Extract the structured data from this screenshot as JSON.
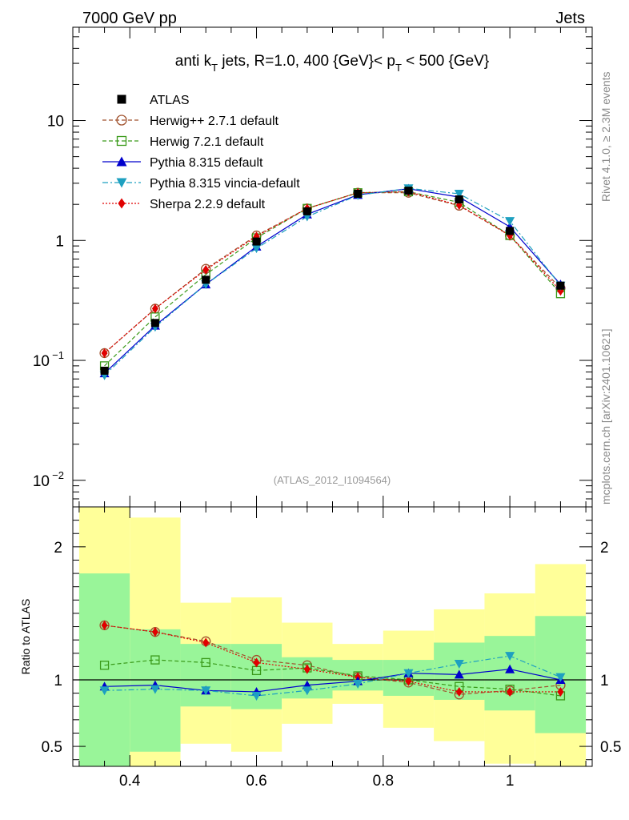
{
  "header": {
    "left": "7000 GeV pp",
    "right": "Jets"
  },
  "side_labels": {
    "top": "Rivet 4.1.0, ≥ 2.3M events",
    "bottom": "mcplots.cern.ch [arXiv:2401.10621]"
  },
  "chart_data": {
    "type": "line",
    "title": "anti k_T jets, R=1.0,  400 {GeV}< p_T < 500 {GeV}",
    "title_parts": {
      "a": "anti k",
      "a_sub": "T",
      "b": " jets, R=1.0,  400 {GeV}< p",
      "b_sub": "T",
      "c": " < 500 {GeV}"
    },
    "watermark": "(ATLAS_2012_I1094564)",
    "x": [
      0.36,
      0.44,
      0.52,
      0.6,
      0.68,
      0.76,
      0.84,
      0.92,
      1.0,
      1.08
    ],
    "xlim": [
      0.31,
      1.13
    ],
    "xticks": [
      0.4,
      0.6,
      0.8,
      1.0
    ],
    "xtick_labels": [
      "0.4",
      "0.6",
      "0.8",
      "1"
    ],
    "main": {
      "yscale": "log",
      "ylim": [
        0.006,
        60
      ],
      "yticks": [
        {
          "value": 0.01,
          "base": "10",
          "exp": "−2"
        },
        {
          "value": 0.1,
          "base": "10",
          "exp": "−1"
        },
        {
          "value": 1,
          "base": "1",
          "exp": ""
        },
        {
          "value": 10,
          "base": "10",
          "exp": ""
        }
      ]
    },
    "ratio": {
      "ylabel": "Ratio to ATLAS",
      "ylim": [
        0.35,
        2.3
      ],
      "yticks": [
        0.5,
        1,
        2
      ],
      "ytick_labels": [
        "0.5",
        "1",
        "2"
      ],
      "bands": {
        "edges": [
          0.32,
          0.4,
          0.48,
          0.56,
          0.64,
          0.72,
          0.8,
          0.88,
          0.96,
          1.04,
          1.12
        ],
        "green_lo": [
          0.32,
          0.46,
          0.8,
          0.78,
          0.86,
          0.92,
          0.88,
          0.85,
          0.77,
          0.6
        ],
        "green_hi": [
          1.8,
          1.38,
          1.27,
          1.27,
          1.17,
          1.15,
          1.15,
          1.28,
          1.33,
          1.48
        ],
        "yellow_lo": [
          0.32,
          0.32,
          0.52,
          0.46,
          0.67,
          0.82,
          0.64,
          0.54,
          0.37,
          0.3
        ],
        "yellow_hi": [
          2.45,
          2.22,
          1.58,
          1.62,
          1.43,
          1.27,
          1.37,
          1.53,
          1.65,
          1.87
        ]
      }
    },
    "legend": [
      "ATLAS",
      "Herwig++ 2.7.1 default",
      "Herwig 7.2.1 default",
      "Pythia 8.315 default",
      "Pythia 8.315 vincia-default",
      "Sherpa 2.2.9 default"
    ],
    "series": [
      {
        "name": "ATLAS",
        "color": "#000000",
        "marker": "square-filled",
        "line": "none",
        "values": [
          0.082,
          0.205,
          0.47,
          0.98,
          1.75,
          2.45,
          2.6,
          2.2,
          1.2,
          0.42
        ],
        "ratio": [
          1,
          1,
          1,
          1,
          1,
          1,
          1,
          1,
          1,
          1
        ]
      },
      {
        "name": "Herwig++ 2.7.1 default",
        "color": "#a0522d",
        "marker": "circle-open",
        "line": "dashed",
        "values": [
          0.115,
          0.27,
          0.58,
          1.1,
          1.85,
          2.5,
          2.5,
          1.95,
          1.1,
          0.4
        ],
        "ratio": [
          1.41,
          1.36,
          1.29,
          1.15,
          1.11,
          1.02,
          0.98,
          0.89,
          0.92,
          0.96
        ]
      },
      {
        "name": "Herwig 7.2.1 default",
        "color": "#3a9a1a",
        "marker": "square-open",
        "line": "dashed",
        "values": [
          0.09,
          0.23,
          0.52,
          1.05,
          1.85,
          2.5,
          2.55,
          2.08,
          1.1,
          0.36
        ],
        "ratio": [
          1.11,
          1.15,
          1.13,
          1.07,
          1.09,
          1.03,
          1.0,
          0.95,
          0.93,
          0.88
        ]
      },
      {
        "name": "Pythia 8.315 default",
        "color": "#0000cc",
        "marker": "triangle-up",
        "line": "solid",
        "values": [
          0.078,
          0.195,
          0.43,
          0.89,
          1.65,
          2.4,
          2.7,
          2.3,
          1.3,
          0.43
        ],
        "ratio": [
          0.95,
          0.96,
          0.92,
          0.91,
          0.96,
          0.99,
          1.05,
          1.04,
          1.08,
          1.0
        ]
      },
      {
        "name": "Pythia 8.315 vincia-default",
        "color": "#1ea0c0",
        "marker": "triangle-down",
        "line": "dashdot",
        "values": [
          0.075,
          0.19,
          0.43,
          0.86,
          1.58,
          2.38,
          2.72,
          2.45,
          1.45,
          0.42
        ],
        "ratio": [
          0.92,
          0.93,
          0.92,
          0.88,
          0.92,
          0.97,
          1.05,
          1.12,
          1.18,
          1.02
        ]
      },
      {
        "name": "Sherpa 2.2.9 default",
        "color": "#e00000",
        "marker": "diamond-filled",
        "line": "dotted",
        "values": [
          0.115,
          0.27,
          0.57,
          1.08,
          1.85,
          2.5,
          2.55,
          1.97,
          1.1,
          0.38
        ],
        "ratio": [
          1.41,
          1.36,
          1.28,
          1.13,
          1.08,
          1.02,
          0.99,
          0.91,
          0.91,
          0.91
        ]
      }
    ]
  }
}
